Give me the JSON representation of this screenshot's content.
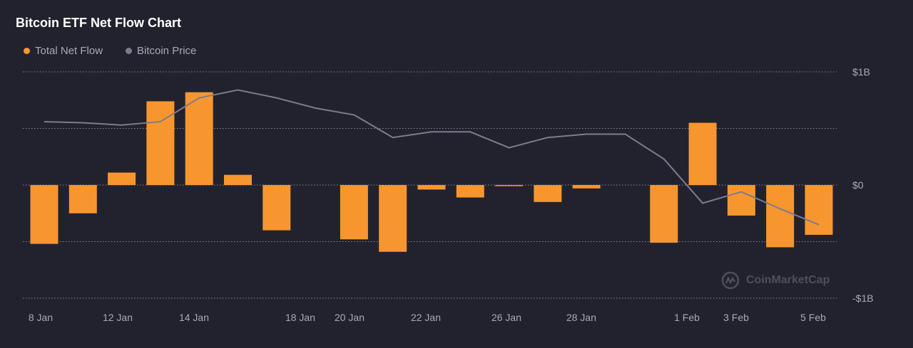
{
  "chart_data": {
    "type": "bar",
    "title": "Bitcoin ETF Net Flow Chart",
    "legend": [
      {
        "name": "Total Net Flow",
        "color": "#f7962f"
      },
      {
        "name": "Bitcoin Price",
        "color": "#7a7d8c"
      }
    ],
    "legend_placement": "top-left",
    "y_ticks": [
      "$1B",
      "$0",
      "-$1B"
    ],
    "ylim_billions": [
      -1,
      1
    ],
    "grid": true,
    "x_tick_labels": [
      "8 Jan",
      "12 Jan",
      "14 Jan",
      "18 Jan",
      "20 Jan",
      "22 Jan",
      "26 Jan",
      "28 Jan",
      "1 Feb",
      "3 Feb",
      "5 Feb"
    ],
    "series": [
      {
        "name": "Total Net Flow",
        "unit": "USD billions",
        "values": [
          -0.52,
          -0.25,
          0.11,
          0.74,
          0.82,
          0.09,
          -0.4,
          0,
          -0.48,
          -0.59,
          -0.04,
          -0.11,
          -0.01,
          -0.15,
          -0.03,
          0,
          -0.51,
          0.55,
          -0.27,
          -0.55,
          -0.44
        ]
      },
      {
        "name": "Bitcoin Price",
        "unit": "relative (no axis shown)",
        "values": [
          0.56,
          0.55,
          0.53,
          0.56,
          0.77,
          0.84,
          0.77,
          0.68,
          0.62,
          0.42,
          0.47,
          0.47,
          0.33,
          0.42,
          0.45,
          0.45,
          0.23,
          -0.16,
          -0.06,
          -0.21,
          -0.35
        ]
      }
    ]
  },
  "watermark": "CoinMarketCap"
}
